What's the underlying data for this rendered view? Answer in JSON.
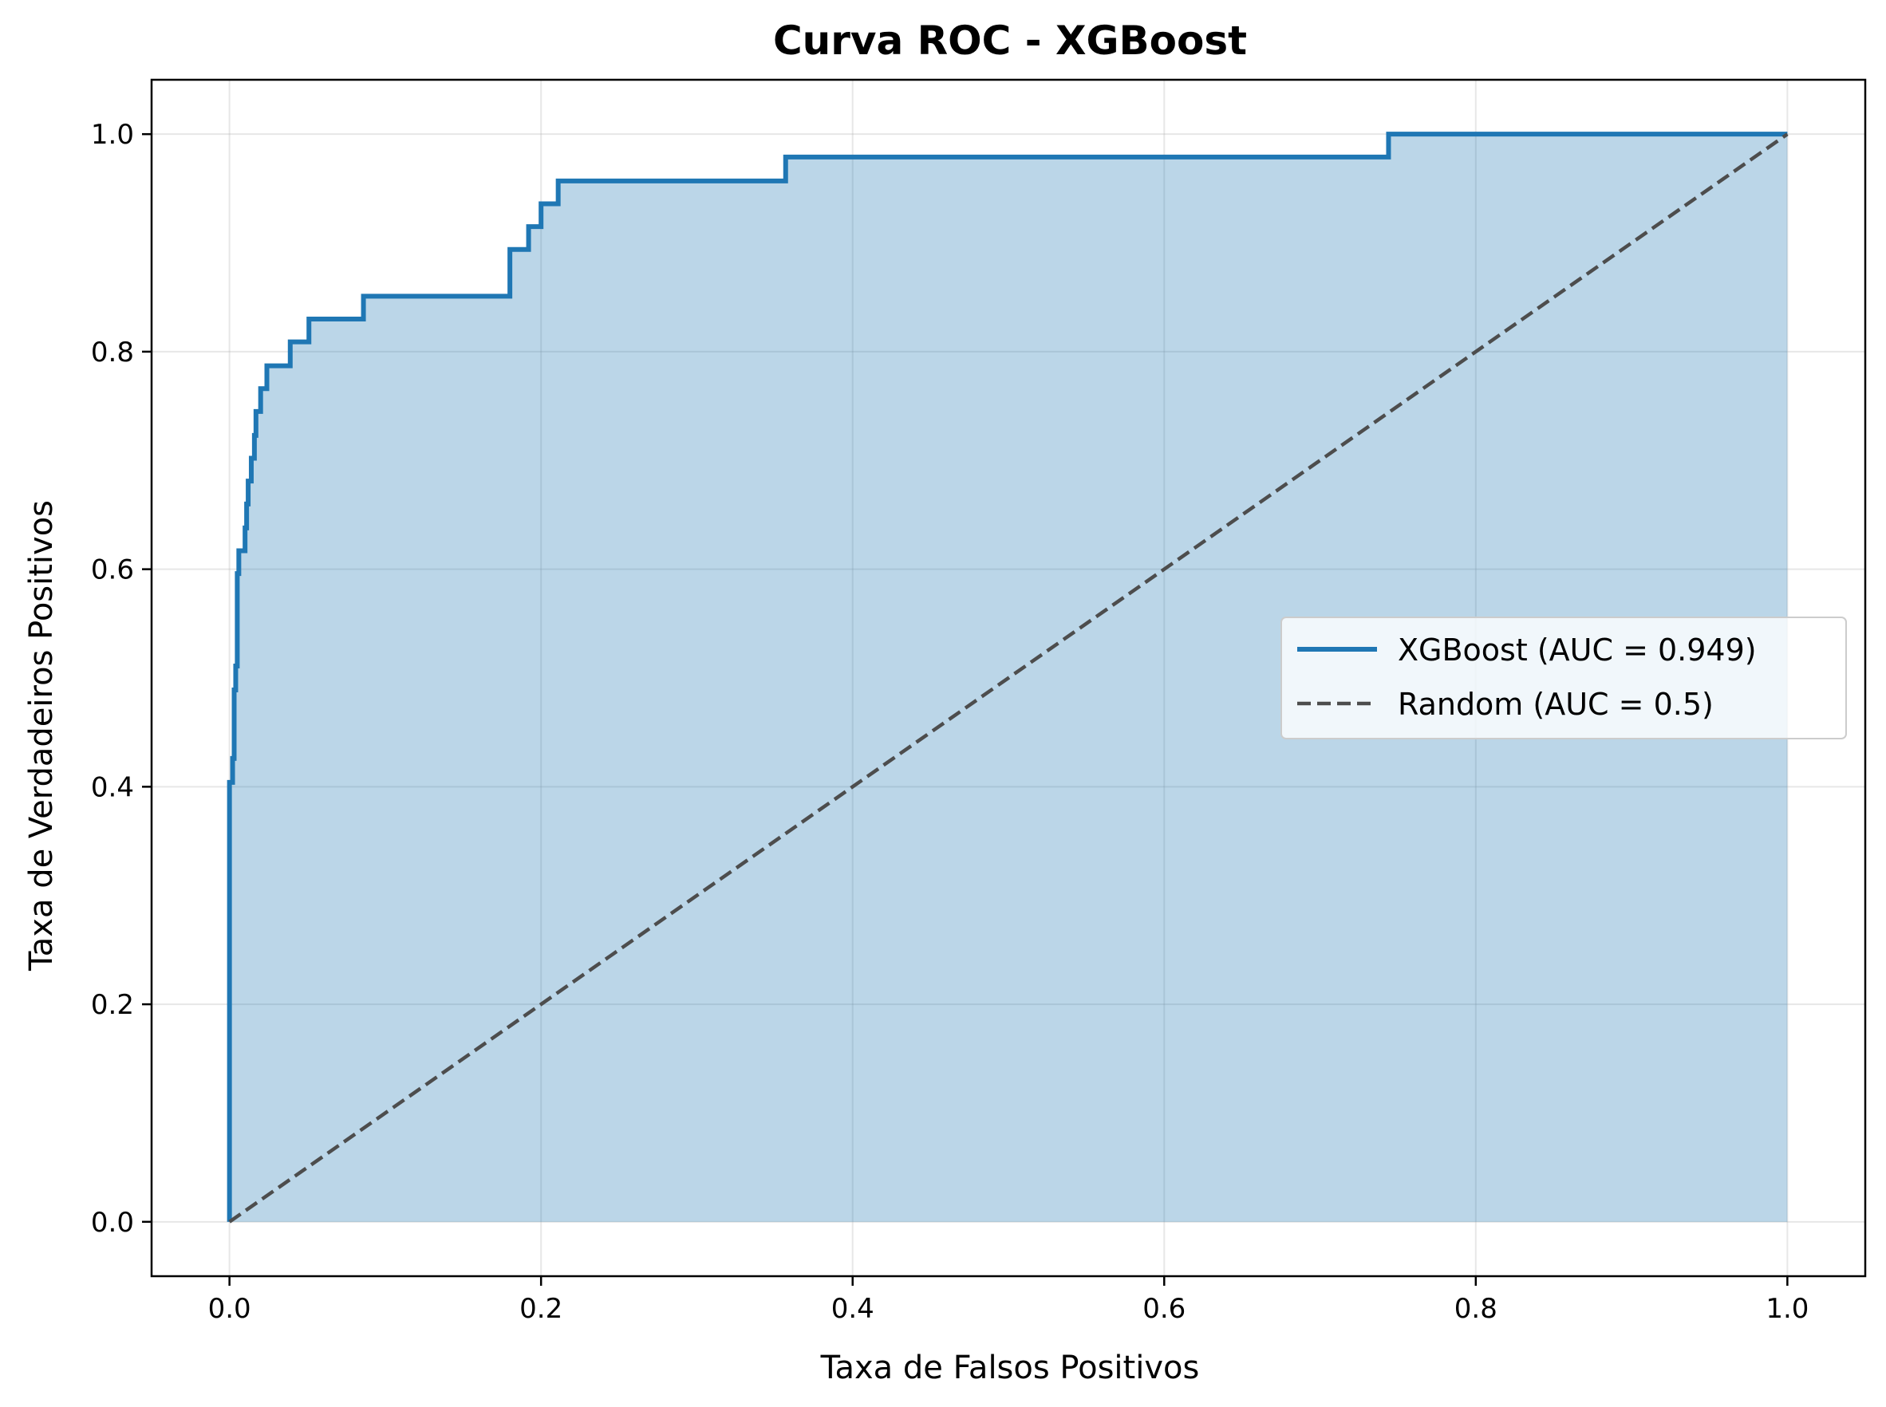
{
  "chart_data": {
    "type": "line",
    "title": "Curva ROC - XGBoost",
    "xlabel": "Taxa de Falsos Positivos",
    "ylabel": "Taxa de Verdadeiros Positivos",
    "xlim": [
      -0.05,
      1.05
    ],
    "ylim": [
      -0.05,
      1.05
    ],
    "xticks": [
      0.0,
      0.2,
      0.4,
      0.6,
      0.8,
      1.0
    ],
    "yticks": [
      0.0,
      0.2,
      0.4,
      0.6,
      0.8,
      1.0
    ],
    "xtick_labels": [
      "0.0",
      "0.2",
      "0.4",
      "0.6",
      "0.8",
      "1.0"
    ],
    "ytick_labels": [
      "0.0",
      "0.2",
      "0.4",
      "0.6",
      "0.8",
      "1.0"
    ],
    "grid": true,
    "legend_position": "center-right",
    "series": [
      {
        "name": "XGBoost (AUC = 0.949)",
        "style": "solid",
        "color": "#1f77b4",
        "fill": true,
        "points": [
          [
            0.0,
            0.0
          ],
          [
            0.0,
            0.404
          ],
          [
            0.002,
            0.404
          ],
          [
            0.002,
            0.426
          ],
          [
            0.003,
            0.426
          ],
          [
            0.003,
            0.489
          ],
          [
            0.004,
            0.489
          ],
          [
            0.004,
            0.511
          ],
          [
            0.005,
            0.511
          ],
          [
            0.005,
            0.596
          ],
          [
            0.006,
            0.596
          ],
          [
            0.006,
            0.617
          ],
          [
            0.01,
            0.617
          ],
          [
            0.01,
            0.638
          ],
          [
            0.011,
            0.638
          ],
          [
            0.011,
            0.66
          ],
          [
            0.012,
            0.66
          ],
          [
            0.012,
            0.681
          ],
          [
            0.014,
            0.681
          ],
          [
            0.014,
            0.702
          ],
          [
            0.016,
            0.702
          ],
          [
            0.016,
            0.723
          ],
          [
            0.017,
            0.723
          ],
          [
            0.017,
            0.745
          ],
          [
            0.02,
            0.745
          ],
          [
            0.02,
            0.766
          ],
          [
            0.024,
            0.766
          ],
          [
            0.024,
            0.787
          ],
          [
            0.039,
            0.787
          ],
          [
            0.039,
            0.809
          ],
          [
            0.051,
            0.809
          ],
          [
            0.051,
            0.83
          ],
          [
            0.086,
            0.83
          ],
          [
            0.086,
            0.851
          ],
          [
            0.18,
            0.851
          ],
          [
            0.18,
            0.894
          ],
          [
            0.192,
            0.894
          ],
          [
            0.192,
            0.915
          ],
          [
            0.2,
            0.915
          ],
          [
            0.2,
            0.936
          ],
          [
            0.211,
            0.936
          ],
          [
            0.211,
            0.957
          ],
          [
            0.357,
            0.957
          ],
          [
            0.357,
            0.979
          ],
          [
            0.744,
            0.979
          ],
          [
            0.744,
            1.0
          ],
          [
            1.0,
            1.0
          ]
        ]
      },
      {
        "name": "Random (AUC = 0.5)",
        "style": "dashed",
        "color": "#4d4d4d",
        "fill": false,
        "points": [
          [
            0.0,
            0.0
          ],
          [
            1.0,
            1.0
          ]
        ]
      }
    ]
  }
}
